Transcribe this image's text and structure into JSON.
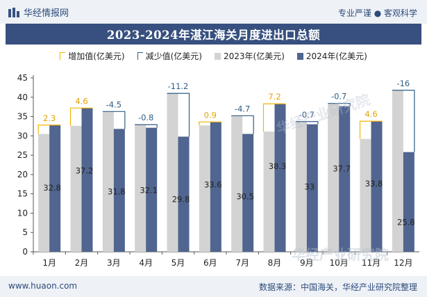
{
  "header": {
    "brand": "华经情报网",
    "tagline": "专业严谨 ● 客观科学"
  },
  "title": "2023-2024年湛江海关月度进出口总额",
  "legend": {
    "increase": "增加值(亿美元)",
    "decrease": "减少值(亿美元)",
    "s2023": "2023年(亿美元)",
    "s2024": "2024年(亿美元)"
  },
  "watermark": "华经产业研究院",
  "footer": {
    "website": "www.huaon.com",
    "source": "数据来源：中国海关，华经产业研究院整理"
  },
  "colors": {
    "s2023": "#d3d3d3",
    "s2024": "#50658f",
    "increase": "#f2b400",
    "decrease": "#2f5d86",
    "title_bg": "#37507f"
  },
  "chart_data": {
    "type": "bar",
    "title": "2023-2024年湛江海关月度进出口总额",
    "categories": [
      "1月",
      "2月",
      "3月",
      "4月",
      "5月",
      "6月",
      "7月",
      "8月",
      "9月",
      "10月",
      "11月",
      "12月"
    ],
    "series": [
      {
        "name": "2023年(亿美元)",
        "values": [
          30.5,
          32.6,
          36.3,
          32.9,
          41.0,
          32.7,
          35.2,
          31.1,
          33.7,
          38.4,
          29.2,
          41.8
        ]
      },
      {
        "name": "2024年(亿美元)",
        "values": [
          32.8,
          37.2,
          31.8,
          32.1,
          29.8,
          33.6,
          30.5,
          38.3,
          33,
          37.7,
          33.8,
          25.8
        ]
      }
    ],
    "change_labels": [
      "2.3",
      "4.6",
      "-4.5",
      "-0.8",
      "-11.2",
      "0.9",
      "-4.7",
      "7.2",
      "-0.7",
      "-0.7",
      "4.6",
      "-16"
    ],
    "value_labels": [
      "32.8",
      "37.2",
      "31.8",
      "32.1",
      "29.8",
      "33.6",
      "30.5",
      "38.3",
      "33",
      "37.7",
      "33.8",
      "25.8"
    ],
    "ylim": [
      0,
      45
    ],
    "yticks": [
      0,
      5,
      10,
      15,
      20,
      25,
      30,
      35,
      40,
      45
    ],
    "grid": false,
    "legend_position": "top"
  }
}
